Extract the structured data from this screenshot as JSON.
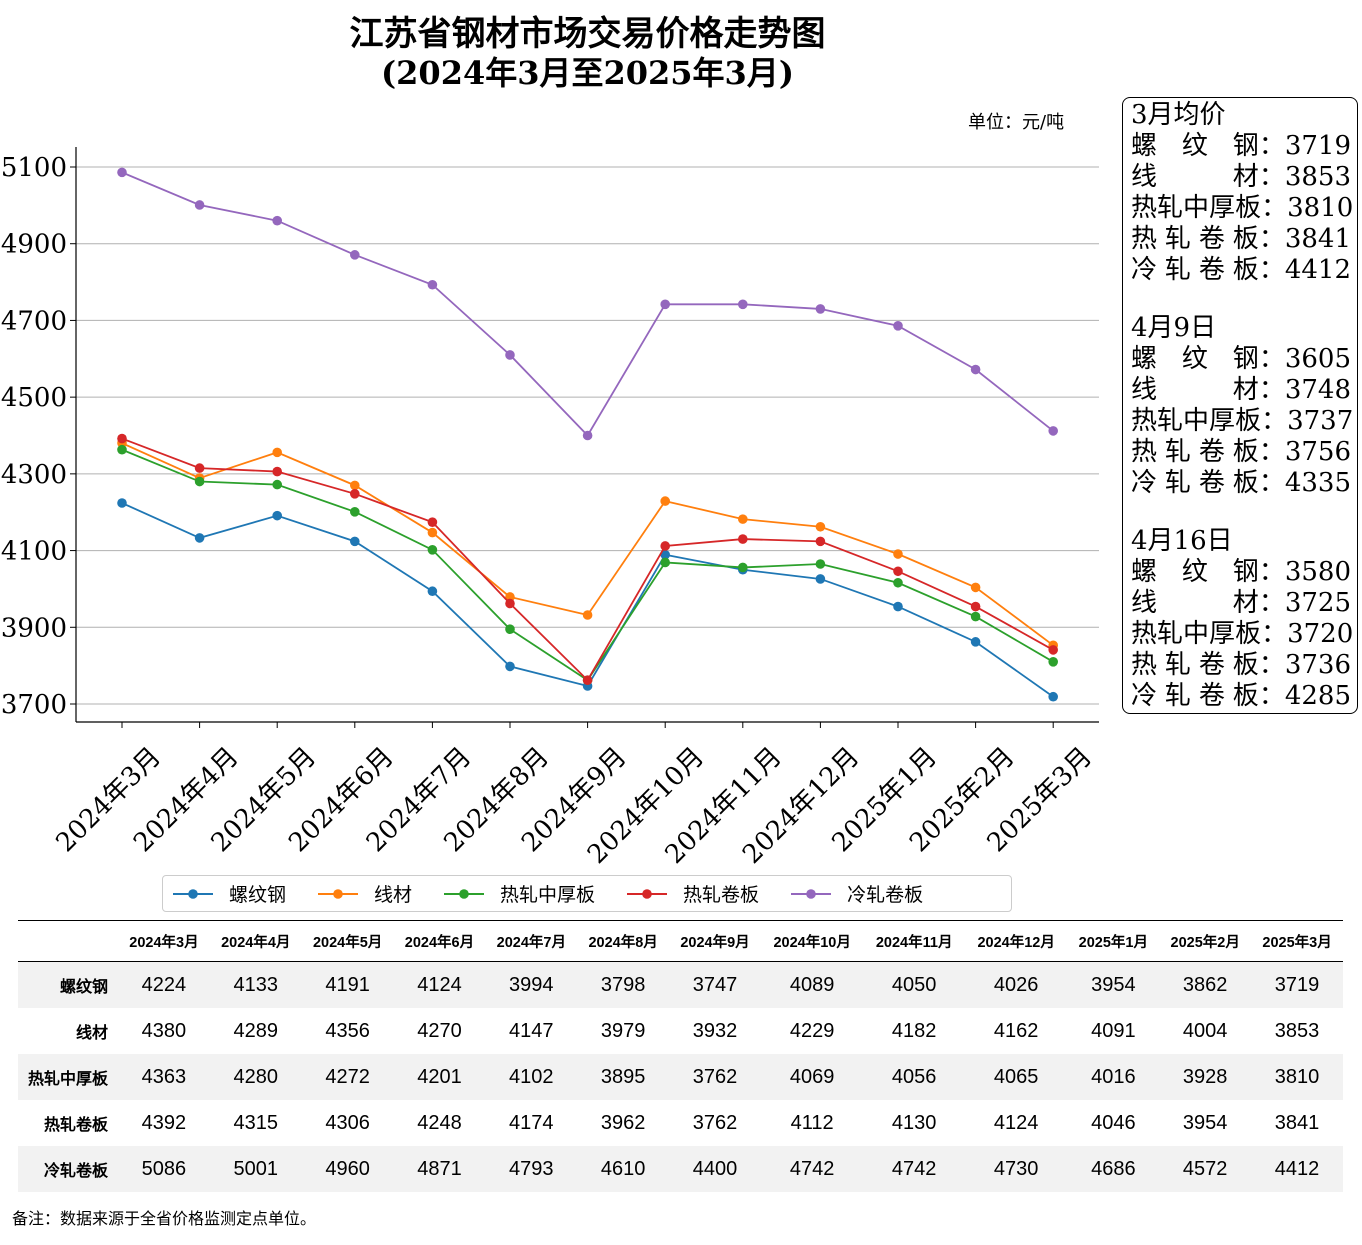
{
  "title_line1": "江苏省钢材市场交易价格走势图",
  "title_line2": "(2024年3月至2025年3月)",
  "unit_label": "单位：元/吨",
  "chart_data": {
    "type": "line",
    "categories": [
      "2024年3月",
      "2024年4月",
      "2024年5月",
      "2024年6月",
      "2024年7月",
      "2024年8月",
      "2024年9月",
      "2024年10月",
      "2024年11月",
      "2024年12月",
      "2025年1月",
      "2025年2月",
      "2025年3月"
    ],
    "yticks": [
      3700,
      3900,
      4100,
      4300,
      4500,
      4700,
      4900,
      5100
    ],
    "ylim": [
      3650,
      5155
    ],
    "grid": "horizontal",
    "series": [
      {
        "name": "螺纹钢",
        "color": "#1f77b4",
        "values": [
          4224,
          4133,
          4191,
          4124,
          3994,
          3798,
          3747,
          4089,
          4050,
          4026,
          3954,
          3862,
          3719
        ]
      },
      {
        "name": "线材",
        "color": "#ff7f0e",
        "values": [
          4380,
          4289,
          4356,
          4270,
          4147,
          3979,
          3932,
          4229,
          4182,
          4162,
          4091,
          4004,
          3853
        ]
      },
      {
        "name": "热轧中厚板",
        "color": "#2ca02c",
        "values": [
          4363,
          4280,
          4272,
          4201,
          4102,
          3895,
          3762,
          4069,
          4056,
          4065,
          4016,
          3928,
          3810
        ]
      },
      {
        "name": "热轧卷板",
        "color": "#d62728",
        "values": [
          4392,
          4315,
          4306,
          4248,
          4174,
          3962,
          3762,
          4112,
          4130,
          4124,
          4046,
          3954,
          3841
        ]
      },
      {
        "name": "冷轧卷板",
        "color": "#9467bd",
        "values": [
          5086,
          5001,
          4960,
          4871,
          4793,
          4610,
          4400,
          4742,
          4742,
          4730,
          4686,
          4572,
          4412
        ]
      }
    ]
  },
  "side_box": {
    "sections": [
      {
        "heading": "3月均价",
        "rows": [
          {
            "label": [
              "螺",
              "纹",
              "钢"
            ],
            "value": "3719"
          },
          {
            "label": [
              "线",
              "材"
            ],
            "value": "3853"
          },
          {
            "label": [
              "热",
              "轧",
              "中",
              "厚",
              "板"
            ],
            "value": "3810"
          },
          {
            "label": [
              "热",
              "轧",
              "卷",
              "板"
            ],
            "value": "3841"
          },
          {
            "label": [
              "冷",
              "轧",
              "卷",
              "板"
            ],
            "value": "4412"
          }
        ]
      },
      {
        "heading": "4月9日",
        "rows": [
          {
            "label": [
              "螺",
              "纹",
              "钢"
            ],
            "value": "3605"
          },
          {
            "label": [
              "线",
              "材"
            ],
            "value": "3748"
          },
          {
            "label": [
              "热",
              "轧",
              "中",
              "厚",
              "板"
            ],
            "value": "3737"
          },
          {
            "label": [
              "热",
              "轧",
              "卷",
              "板"
            ],
            "value": "3756"
          },
          {
            "label": [
              "冷",
              "轧",
              "卷",
              "板"
            ],
            "value": "4335"
          }
        ]
      },
      {
        "heading": "4月16日",
        "rows": [
          {
            "label": [
              "螺",
              "纹",
              "钢"
            ],
            "value": "3580"
          },
          {
            "label": [
              "线",
              "材"
            ],
            "value": "3725"
          },
          {
            "label": [
              "热",
              "轧",
              "中",
              "厚",
              "板"
            ],
            "value": "3720"
          },
          {
            "label": [
              "热",
              "轧",
              "卷",
              "板"
            ],
            "value": "3736"
          },
          {
            "label": [
              "冷",
              "轧",
              "卷",
              "板"
            ],
            "value": "4285"
          }
        ]
      }
    ]
  },
  "table": {
    "headers": [
      "2024年3月",
      "2024年4月",
      "2024年5月",
      "2024年6月",
      "2024年7月",
      "2024年8月",
      "2024年9月",
      "2024年10月",
      "2024年11月",
      "2024年12月",
      "2025年1月",
      "2025年2月",
      "2025年3月"
    ],
    "rows": [
      {
        "name": "螺纹钢",
        "values": [
          "4224",
          "4133",
          "4191",
          "4124",
          "3994",
          "3798",
          "3747",
          "4089",
          "4050",
          "4026",
          "3954",
          "3862",
          "3719"
        ]
      },
      {
        "name": "线材",
        "values": [
          "4380",
          "4289",
          "4356",
          "4270",
          "4147",
          "3979",
          "3932",
          "4229",
          "4182",
          "4162",
          "4091",
          "4004",
          "3853"
        ]
      },
      {
        "name": "热轧中厚板",
        "values": [
          "4363",
          "4280",
          "4272",
          "4201",
          "4102",
          "3895",
          "3762",
          "4069",
          "4056",
          "4065",
          "4016",
          "3928",
          "3810"
        ]
      },
      {
        "name": "热轧卷板",
        "values": [
          "4392",
          "4315",
          "4306",
          "4248",
          "4174",
          "3962",
          "3762",
          "4112",
          "4130",
          "4124",
          "4046",
          "3954",
          "3841"
        ]
      },
      {
        "name": "冷轧卷板",
        "values": [
          "5086",
          "5001",
          "4960",
          "4871",
          "4793",
          "4610",
          "4400",
          "4742",
          "4742",
          "4730",
          "4686",
          "4572",
          "4412"
        ]
      }
    ]
  },
  "note": "备注：数据来源于全省价格监测定点单位。"
}
